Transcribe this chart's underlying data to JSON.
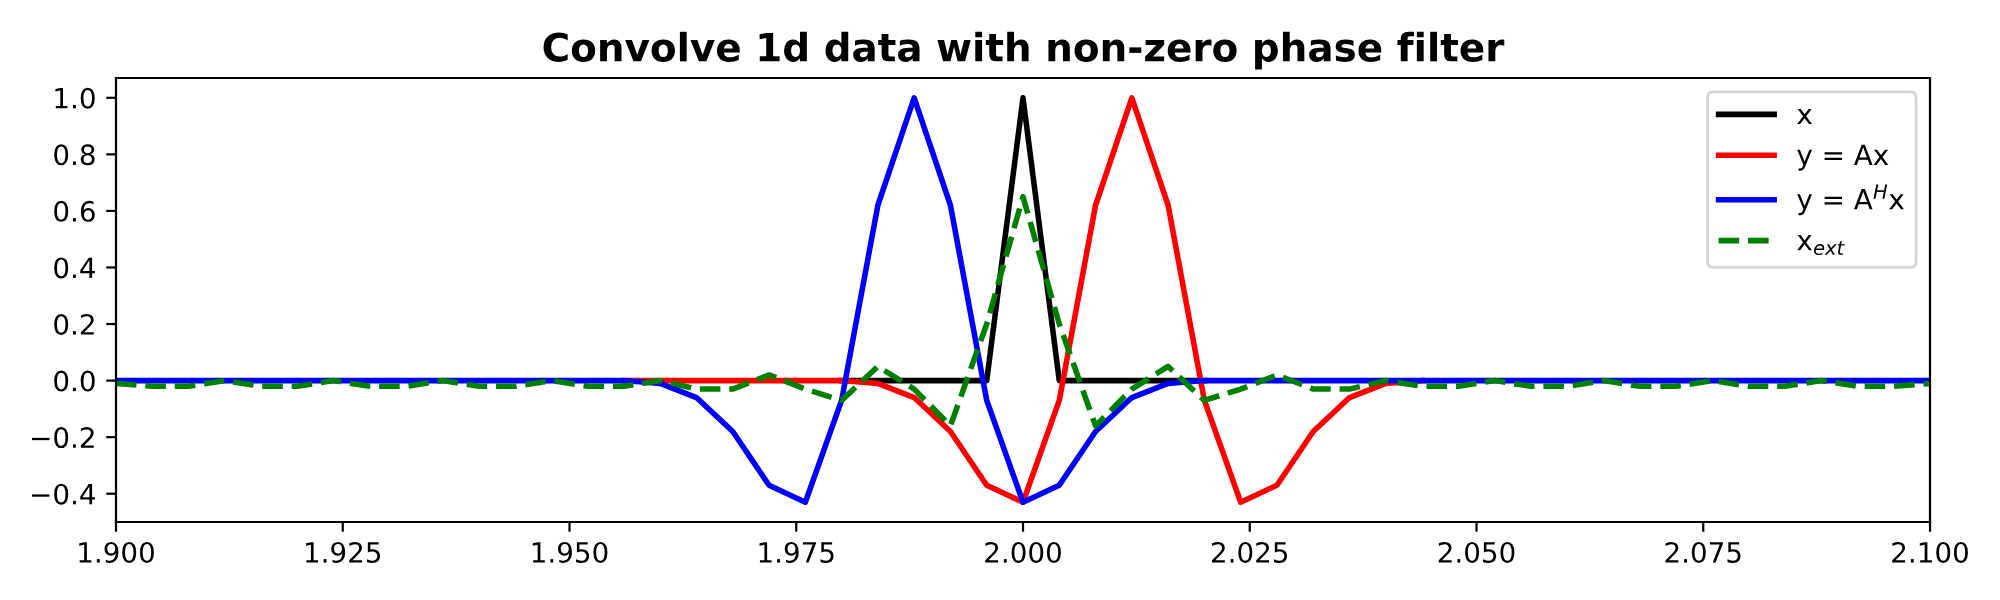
{
  "chart_data": {
    "type": "line",
    "title": "Convolve 1d data with non-zero phase filter",
    "x": [
      1.9,
      1.904,
      1.908,
      1.912,
      1.916,
      1.92,
      1.924,
      1.928,
      1.932,
      1.936,
      1.94,
      1.944,
      1.948,
      1.952,
      1.956,
      1.96,
      1.964,
      1.968,
      1.972,
      1.976,
      1.98,
      1.984,
      1.988,
      1.992,
      1.996,
      2.0,
      2.004,
      2.008,
      2.012,
      2.016,
      2.02,
      2.024,
      2.028,
      2.032,
      2.036,
      2.04,
      2.044,
      2.048,
      2.052,
      2.056,
      2.06,
      2.064,
      2.068,
      2.072,
      2.076,
      2.08,
      2.084,
      2.088,
      2.092,
      2.096,
      2.1
    ],
    "series": [
      {
        "name": "x",
        "color": "#000000",
        "values": [
          null,
          null,
          null,
          null,
          null,
          null,
          null,
          null,
          null,
          null,
          null,
          null,
          null,
          null,
          null,
          null,
          null,
          null,
          null,
          null,
          0,
          0,
          0,
          0,
          0,
          1,
          0,
          0,
          0,
          0,
          0,
          null,
          null,
          null,
          null,
          null,
          null,
          null,
          null,
          null,
          null,
          null,
          null,
          null,
          null,
          null,
          null,
          null,
          null,
          null,
          null
        ]
      },
      {
        "name": "y = Ax",
        "color": "#ff0000",
        "values": [
          null,
          null,
          null,
          null,
          null,
          null,
          null,
          null,
          null,
          null,
          null,
          null,
          null,
          null,
          0,
          0,
          0,
          0,
          0,
          0,
          0,
          -0.01,
          -0.06,
          -0.18,
          -0.37,
          -0.43,
          -0.07,
          0.62,
          1.0,
          0.62,
          -0.07,
          -0.43,
          -0.37,
          -0.18,
          -0.06,
          -0.01,
          0,
          null,
          null,
          null,
          null,
          null,
          null,
          null,
          null,
          null,
          null,
          null,
          null,
          null,
          null
        ]
      },
      {
        "name": "y = A$^{H}$x",
        "color": "#0000ff",
        "values": [
          0,
          0,
          0,
          0,
          0,
          0,
          0,
          0,
          0,
          0,
          0,
          0,
          0,
          0,
          0,
          -0.01,
          -0.06,
          -0.18,
          -0.37,
          -0.43,
          -0.07,
          0.62,
          1.0,
          0.62,
          -0.07,
          -0.43,
          -0.37,
          -0.18,
          -0.06,
          -0.01,
          0,
          0,
          0,
          0,
          0,
          0,
          0,
          0,
          0,
          0,
          0,
          0,
          0,
          0,
          0,
          0,
          0,
          0,
          0,
          0,
          0
        ]
      },
      {
        "name": "x$_{ext}$",
        "color": "#008000",
        "line_style": "dashed",
        "values": [
          -0.01,
          -0.02,
          -0.02,
          0,
          -0.02,
          -0.02,
          0,
          -0.02,
          -0.02,
          0,
          -0.02,
          -0.02,
          0,
          -0.02,
          -0.02,
          0,
          -0.03,
          -0.03,
          0.02,
          -0.03,
          -0.07,
          0.05,
          -0.03,
          -0.16,
          0.2,
          0.65,
          0.2,
          -0.16,
          -0.03,
          0.05,
          -0.07,
          -0.03,
          0.02,
          -0.03,
          -0.03,
          0,
          -0.02,
          -0.02,
          0,
          -0.02,
          -0.02,
          0,
          -0.02,
          -0.02,
          0,
          -0.02,
          -0.02,
          0,
          -0.02,
          -0.02,
          -0.01
        ]
      }
    ],
    "xlim": [
      1.9,
      2.1
    ],
    "xticks": [
      {
        "value": 1.9,
        "label": "1.900"
      },
      {
        "value": 1.925,
        "label": "1.925"
      },
      {
        "value": 1.95,
        "label": "1.950"
      },
      {
        "value": 1.975,
        "label": "1.975"
      },
      {
        "value": 2.0,
        "label": "2.000"
      },
      {
        "value": 2.025,
        "label": "2.025"
      },
      {
        "value": 2.05,
        "label": "2.050"
      },
      {
        "value": 2.075,
        "label": "2.075"
      },
      {
        "value": 2.1,
        "label": "2.100"
      }
    ],
    "ylim": [
      -0.5,
      1.07
    ],
    "yticks": [
      {
        "value": -0.4,
        "label": "−0.4"
      },
      {
        "value": -0.2,
        "label": "−0.2"
      },
      {
        "value": 0,
        "label": "0.0"
      },
      {
        "value": 0.2,
        "label": "0.2"
      },
      {
        "value": 0.4,
        "label": "0.4"
      },
      {
        "value": 0.6,
        "label": "0.6"
      },
      {
        "value": 0.8,
        "label": "0.8"
      },
      {
        "value": 1.0,
        "label": "1.0"
      }
    ],
    "legend": "top right",
    "grid": false,
    "marker": "none",
    "line_style": "solid"
  }
}
